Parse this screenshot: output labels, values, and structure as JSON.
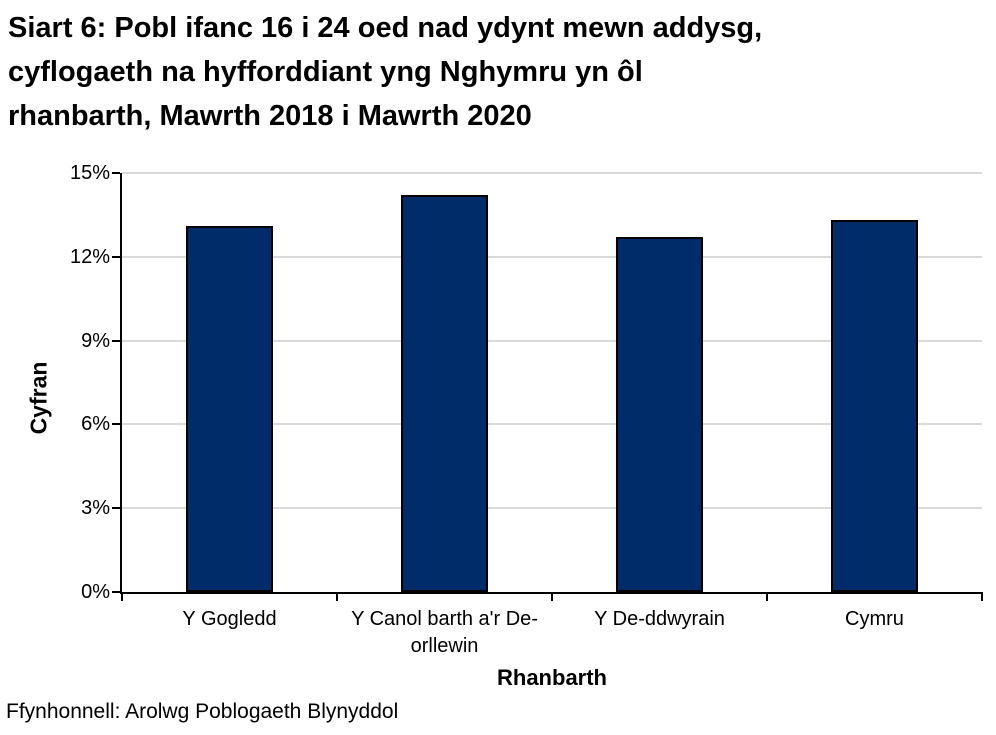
{
  "title_lines": [
    "Siart 6: Pobl ifanc 16 i 24 oed nad ydynt mewn addysg,",
    "cyflogaeth na hyfforddiant yng Nghymru yn ôl",
    "rhanbarth, Mawrth 2018 i Mawrth 2020"
  ],
  "source": "Ffynhonnell: Arolwg Poblogaeth Blynyddol",
  "chart_data": {
    "type": "bar",
    "title": "Siart 6: Pobl ifanc 16 i 24 oed nad ydynt mewn addysg, cyflogaeth na hyfforddiant yng Nghymru yn ôl rhanbarth, Mawrth 2018 i Mawrth 2020",
    "categories": [
      "Y Gogledd",
      "Y Canol barth a'r De-orllewin",
      "Y De-ddwyrain",
      "Cymru"
    ],
    "values": [
      13.1,
      14.2,
      12.7,
      13.3
    ],
    "xlabel": "Rhanbarth",
    "ylabel": "Cyfran",
    "ylim": [
      0,
      15
    ],
    "yticks": [
      0,
      3,
      6,
      9,
      12,
      15
    ],
    "ytick_suffix": "%",
    "grid": "horizontal",
    "legend": "none",
    "bar_color": "#002d69",
    "bar_border_color": "#000000",
    "gridline_color": "#d9d9d9",
    "axis_color": "#000000"
  }
}
